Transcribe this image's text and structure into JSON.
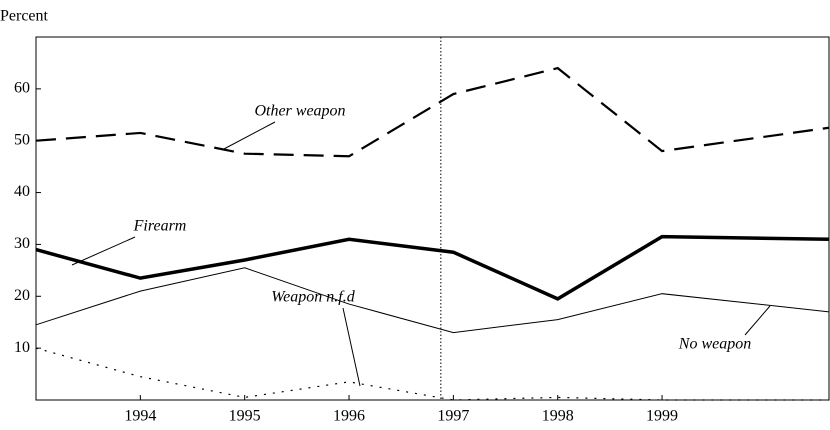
{
  "chart_data": {
    "type": "line",
    "y_axis_label": "Percent",
    "x": [
      1993,
      1994,
      1995,
      1996,
      1997,
      1998,
      1999,
      2000.6
    ],
    "series": [
      {
        "name": "Other weapon",
        "color": "#000000",
        "style": "dashed",
        "width": 2.2,
        "values": [
          50,
          51.5,
          47.5,
          47,
          59,
          64,
          48,
          52.5
        ]
      },
      {
        "name": "Firearm",
        "color": "#000000",
        "style": "solid",
        "width": 3.5,
        "values": [
          29,
          23.5,
          27,
          31,
          28.5,
          19.5,
          31.5,
          31
        ]
      },
      {
        "name": "No weapon",
        "color": "#000000",
        "style": "solid",
        "width": 1,
        "values": [
          14.5,
          21,
          25.5,
          18.5,
          13,
          15.5,
          20.5,
          17
        ]
      },
      {
        "name": "Weapon n.f.d",
        "color": "#000000",
        "style": "dotted",
        "width": 1.2,
        "values": [
          10,
          4.5,
          0.5,
          3.5,
          0,
          0.5,
          0,
          0
        ]
      }
    ],
    "divider_x": 1996.88,
    "xlim": [
      1993,
      2000.6
    ],
    "xticks": [
      1994,
      1995,
      1996,
      1997,
      1998,
      1999
    ],
    "ylim": [
      0,
      70
    ],
    "yticks": [
      10,
      20,
      30,
      40,
      50,
      60
    ]
  }
}
